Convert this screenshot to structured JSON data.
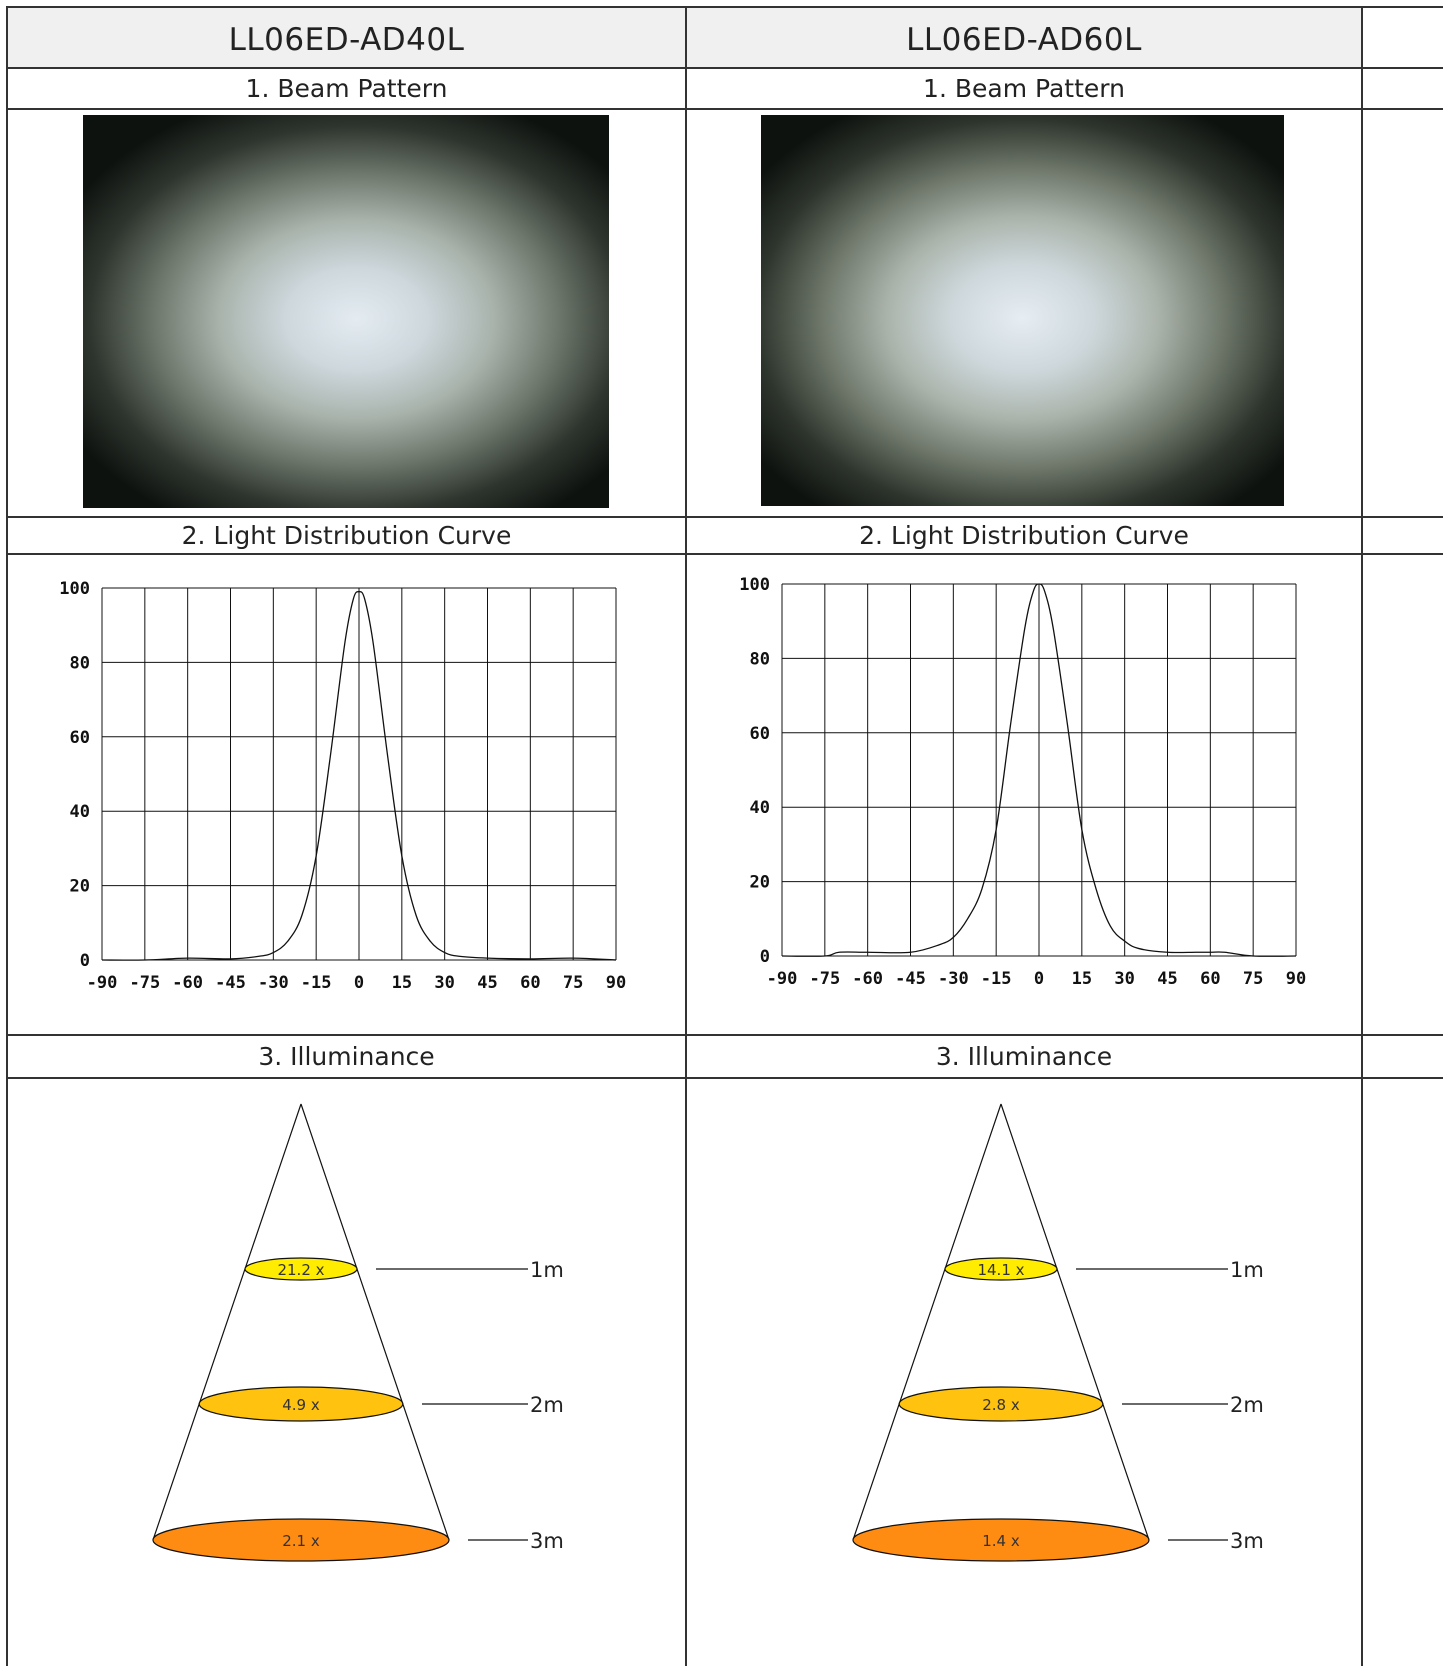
{
  "columns": [
    {
      "model": "LL06ED-AD40L",
      "beam_section": "1. Beam Pattern",
      "curve_section": "2. Light Distribution Curve",
      "illuminance_section": "3. Illuminance",
      "illuminance": [
        {
          "distance": "1m",
          "value": "21.2 x",
          "color": "#ffec00"
        },
        {
          "distance": "2m",
          "value": "4.9 x",
          "color": "#ffc20e"
        },
        {
          "distance": "3m",
          "value": "2.1 x",
          "color": "#ff8c12"
        }
      ]
    },
    {
      "model": "LL06ED-AD60L",
      "beam_section": "1. Beam Pattern",
      "curve_section": "2. Light Distribution Curve",
      "illuminance_section": "3. Illuminance",
      "illuminance": [
        {
          "distance": "1m",
          "value": "14.1 x",
          "color": "#ffec00"
        },
        {
          "distance": "2m",
          "value": "2.8 x",
          "color": "#ffc20e"
        },
        {
          "distance": "3m",
          "value": "1.4 x",
          "color": "#ff8c12"
        }
      ]
    }
  ],
  "chart_data": [
    {
      "type": "line",
      "title": "",
      "xlabel": "",
      "ylabel": "",
      "x_ticks": [
        "-90",
        "-75",
        "-60",
        "-45",
        "-30",
        "-15",
        "0",
        "15",
        "30",
        "45",
        "60",
        "75",
        "90"
      ],
      "y_ticks": [
        "0",
        "20",
        "40",
        "60",
        "80",
        "100"
      ],
      "xlim": [
        -90,
        90
      ],
      "ylim": [
        0,
        100
      ],
      "grid": true,
      "series": [
        {
          "x": [
            -90,
            -75,
            -60,
            -45,
            -35,
            -30,
            -25,
            -20,
            -15,
            -10,
            -5,
            -2,
            0,
            2,
            5,
            10,
            15,
            20,
            25,
            30,
            35,
            45,
            60,
            75,
            90
          ],
          "y": [
            0,
            0,
            0.5,
            0.3,
            1,
            2,
            5,
            12,
            28,
            55,
            85,
            97,
            99,
            97,
            85,
            55,
            28,
            12,
            5,
            2,
            1,
            0.5,
            0.3,
            0.5,
            0
          ]
        }
      ]
    },
    {
      "type": "line",
      "title": "",
      "xlabel": "",
      "ylabel": "",
      "x_ticks": [
        "-90",
        "-75",
        "-60",
        "-45",
        "-30",
        "-15",
        "0",
        "15",
        "30",
        "45",
        "60",
        "75",
        "90"
      ],
      "y_ticks": [
        "0",
        "20",
        "40",
        "60",
        "80",
        "100"
      ],
      "xlim": [
        -90,
        90
      ],
      "ylim": [
        0,
        100
      ],
      "grid": true,
      "series": [
        {
          "x": [
            -90,
            -75,
            -70,
            -60,
            -45,
            -35,
            -30,
            -25,
            -20,
            -15,
            -10,
            -5,
            -2,
            0,
            2,
            5,
            10,
            15,
            20,
            25,
            30,
            35,
            45,
            55,
            60,
            65,
            75,
            90
          ],
          "y": [
            0,
            0,
            1,
            1,
            1,
            3,
            5,
            10,
            18,
            34,
            62,
            88,
            98,
            100,
            98,
            88,
            62,
            34,
            18,
            8,
            4,
            2,
            1,
            1,
            1,
            1,
            0,
            0
          ]
        }
      ]
    }
  ]
}
